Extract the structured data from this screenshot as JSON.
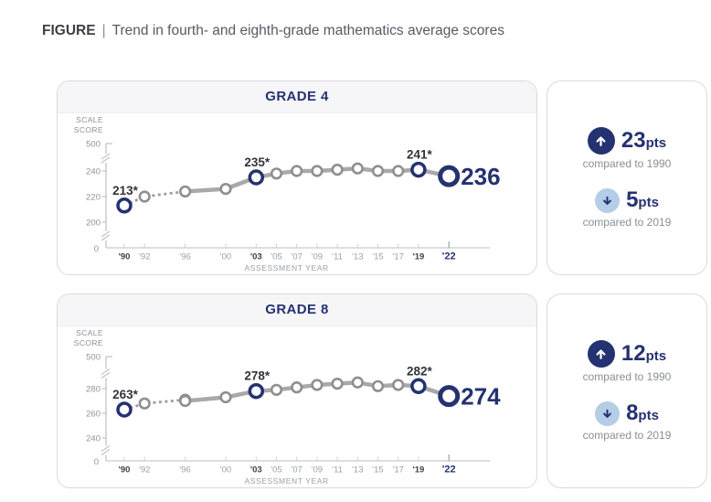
{
  "title": {
    "prefix": "FIGURE",
    "separator": "|",
    "text": "Trend in fourth- and eighth-grade mathematics average scores"
  },
  "colors": {
    "navy": "#243272",
    "light_blue": "#b5cde6",
    "line_gray": "#a9a9a9",
    "circle_gray": "#8f8f8f",
    "point_label_dark": "#33343a",
    "axis_gray": "#bfc2c7",
    "tick_text_gray": "#9aa0a6",
    "emphasized_tick_text": "#3f4146"
  },
  "chart_data": [
    {
      "type": "line",
      "title": "GRADE 4",
      "ylabel": [
        "SCALE",
        "SCORE"
      ],
      "xlabel": "ASSESSMENT YEAR",
      "axis_breaks": true,
      "y_tick_labels": [
        "500",
        "240",
        "220",
        "200",
        "0"
      ],
      "y_tick_values": [
        500,
        240,
        220,
        200,
        0
      ],
      "x_tick_labels": [
        "'90",
        "'92",
        "'96",
        "'00",
        "'03",
        "'05",
        "'07",
        "'09",
        "'11",
        "'13",
        "'15",
        "'17",
        "'19",
        "'22"
      ],
      "x_years": [
        1990,
        1992,
        1996,
        2000,
        2003,
        2005,
        2007,
        2009,
        2011,
        2013,
        2015,
        2017,
        2019,
        2022
      ],
      "emphasized_x_labels": [
        "'90",
        "'03",
        "'19"
      ],
      "final_x_label": "'22",
      "series": [
        {
          "name": "original-assessment-dashed",
          "style": "dashed",
          "x": [
            1990,
            1992,
            1996
          ],
          "values": [
            213,
            220,
            224
          ]
        },
        {
          "name": "current-assessment-solid",
          "style": "solid",
          "x": [
            1996,
            2000,
            2003,
            2005,
            2007,
            2009,
            2011,
            2013,
            2015,
            2017,
            2019,
            2022
          ],
          "values": [
            224,
            226,
            235,
            238,
            240,
            240,
            241,
            242,
            240,
            240,
            241,
            236
          ]
        }
      ],
      "gray_points": [
        {
          "x": 1992,
          "v": 220
        },
        {
          "x": 1996,
          "v": 224
        },
        {
          "x": 2000,
          "v": 226
        },
        {
          "x": 2005,
          "v": 238
        },
        {
          "x": 2007,
          "v": 240
        },
        {
          "x": 2009,
          "v": 240
        },
        {
          "x": 2011,
          "v": 241
        },
        {
          "x": 2013,
          "v": 242
        },
        {
          "x": 2015,
          "v": 240
        },
        {
          "x": 2017,
          "v": 240
        }
      ],
      "highlighted_points": [
        {
          "x": 1990,
          "v": 213,
          "label": "213*"
        },
        {
          "x": 2003,
          "v": 235,
          "label": "235*"
        },
        {
          "x": 2019,
          "v": 241,
          "label": "241*"
        }
      ],
      "final_point": {
        "x": 2022,
        "v": 236,
        "label": "236"
      }
    },
    {
      "type": "line",
      "title": "GRADE 8",
      "ylabel": [
        "SCALE",
        "SCORE"
      ],
      "xlabel": "ASSESSMENT YEAR",
      "axis_breaks": true,
      "y_tick_labels": [
        "500",
        "280",
        "260",
        "240",
        "0"
      ],
      "y_tick_values": [
        500,
        280,
        260,
        240,
        0
      ],
      "x_tick_labels": [
        "'90",
        "'92",
        "'96",
        "'00",
        "'03",
        "'05",
        "'07",
        "'09",
        "'11",
        "'13",
        "'15",
        "'17",
        "'19",
        "'22"
      ],
      "x_years": [
        1990,
        1992,
        1996,
        2000,
        2003,
        2005,
        2007,
        2009,
        2011,
        2013,
        2015,
        2017,
        2019,
        2022
      ],
      "emphasized_x_labels": [
        "'90",
        "'03",
        "'19"
      ],
      "final_x_label": "'22",
      "series": [
        {
          "name": "original-assessment-dashed",
          "style": "dashed",
          "x": [
            1990,
            1992,
            1996
          ],
          "values": [
            263,
            268,
            271
          ]
        },
        {
          "name": "current-assessment-solid",
          "style": "solid",
          "x": [
            1996,
            2000,
            2003,
            2005,
            2007,
            2009,
            2011,
            2013,
            2015,
            2017,
            2019,
            2022
          ],
          "values": [
            270,
            273,
            278,
            279,
            281,
            283,
            284,
            285,
            282,
            283,
            282,
            274
          ]
        }
      ],
      "gray_points": [
        {
          "x": 1992,
          "v": 268
        },
        {
          "x": 1996,
          "v": 271
        },
        {
          "x": 1996,
          "v": 270
        },
        {
          "x": 2000,
          "v": 273
        },
        {
          "x": 2005,
          "v": 279
        },
        {
          "x": 2007,
          "v": 281
        },
        {
          "x": 2009,
          "v": 283
        },
        {
          "x": 2011,
          "v": 284
        },
        {
          "x": 2013,
          "v": 285
        },
        {
          "x": 2015,
          "v": 282
        },
        {
          "x": 2017,
          "v": 283
        }
      ],
      "highlighted_points": [
        {
          "x": 1990,
          "v": 263,
          "label": "263*"
        },
        {
          "x": 2003,
          "v": 278,
          "label": "278*"
        },
        {
          "x": 2019,
          "v": 282,
          "label": "282*"
        }
      ],
      "final_point": {
        "x": 2022,
        "v": 274,
        "label": "274"
      }
    }
  ],
  "panels": [
    {
      "stats": [
        {
          "direction": "up",
          "icon": "arrow-up-circle-icon",
          "value": "23",
          "unit": "pts",
          "caption": "compared to 1990"
        },
        {
          "direction": "down",
          "icon": "arrow-down-circle-icon",
          "value": "5",
          "unit": "pts",
          "caption": "compared to 2019"
        }
      ]
    },
    {
      "stats": [
        {
          "direction": "up",
          "icon": "arrow-up-circle-icon",
          "value": "12",
          "unit": "pts",
          "caption": "compared to 1990"
        },
        {
          "direction": "down",
          "icon": "arrow-down-circle-icon",
          "value": "8",
          "unit": "pts",
          "caption": "compared to 2019"
        }
      ]
    }
  ]
}
